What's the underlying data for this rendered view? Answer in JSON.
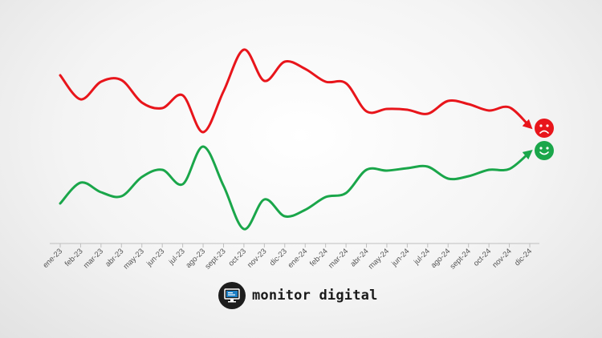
{
  "chart_data": {
    "type": "line",
    "categories": [
      "ene-23",
      "feb-23",
      "mar-23",
      "abr-23",
      "may-23",
      "jun-23",
      "jul-23",
      "ago-23",
      "sept-23",
      "oct-23",
      "nov-23",
      "dic-23",
      "ene-24",
      "feb-24",
      "mar-24",
      "abr-24",
      "may-24",
      "jun-24",
      "jul-24",
      "ago-24",
      "sept-24",
      "oct-24",
      "nov-24",
      "dic-24"
    ],
    "series": [
      {
        "color": "#e8151b",
        "icon": "sad-face-icon",
        "values": [
          94,
          124,
          102,
          100,
          128,
          135,
          119,
          165,
          114,
          62,
          101,
          77,
          86,
          102,
          104,
          139,
          136,
          137,
          142,
          126,
          130,
          138,
          134,
          158
        ]
      },
      {
        "color": "#1aa64a",
        "icon": "happy-face-icon",
        "values": [
          254,
          228,
          240,
          245,
          221,
          212,
          230,
          183,
          232,
          286,
          249,
          270,
          262,
          246,
          241,
          212,
          213,
          210,
          208,
          223,
          220,
          212,
          211,
          190
        ]
      }
    ],
    "ylim": [
      300,
      40
    ],
    "grid": false,
    "legend": "none",
    "axis_color": "#bfbfbf"
  },
  "brand": {
    "name": "monitor digital"
  }
}
